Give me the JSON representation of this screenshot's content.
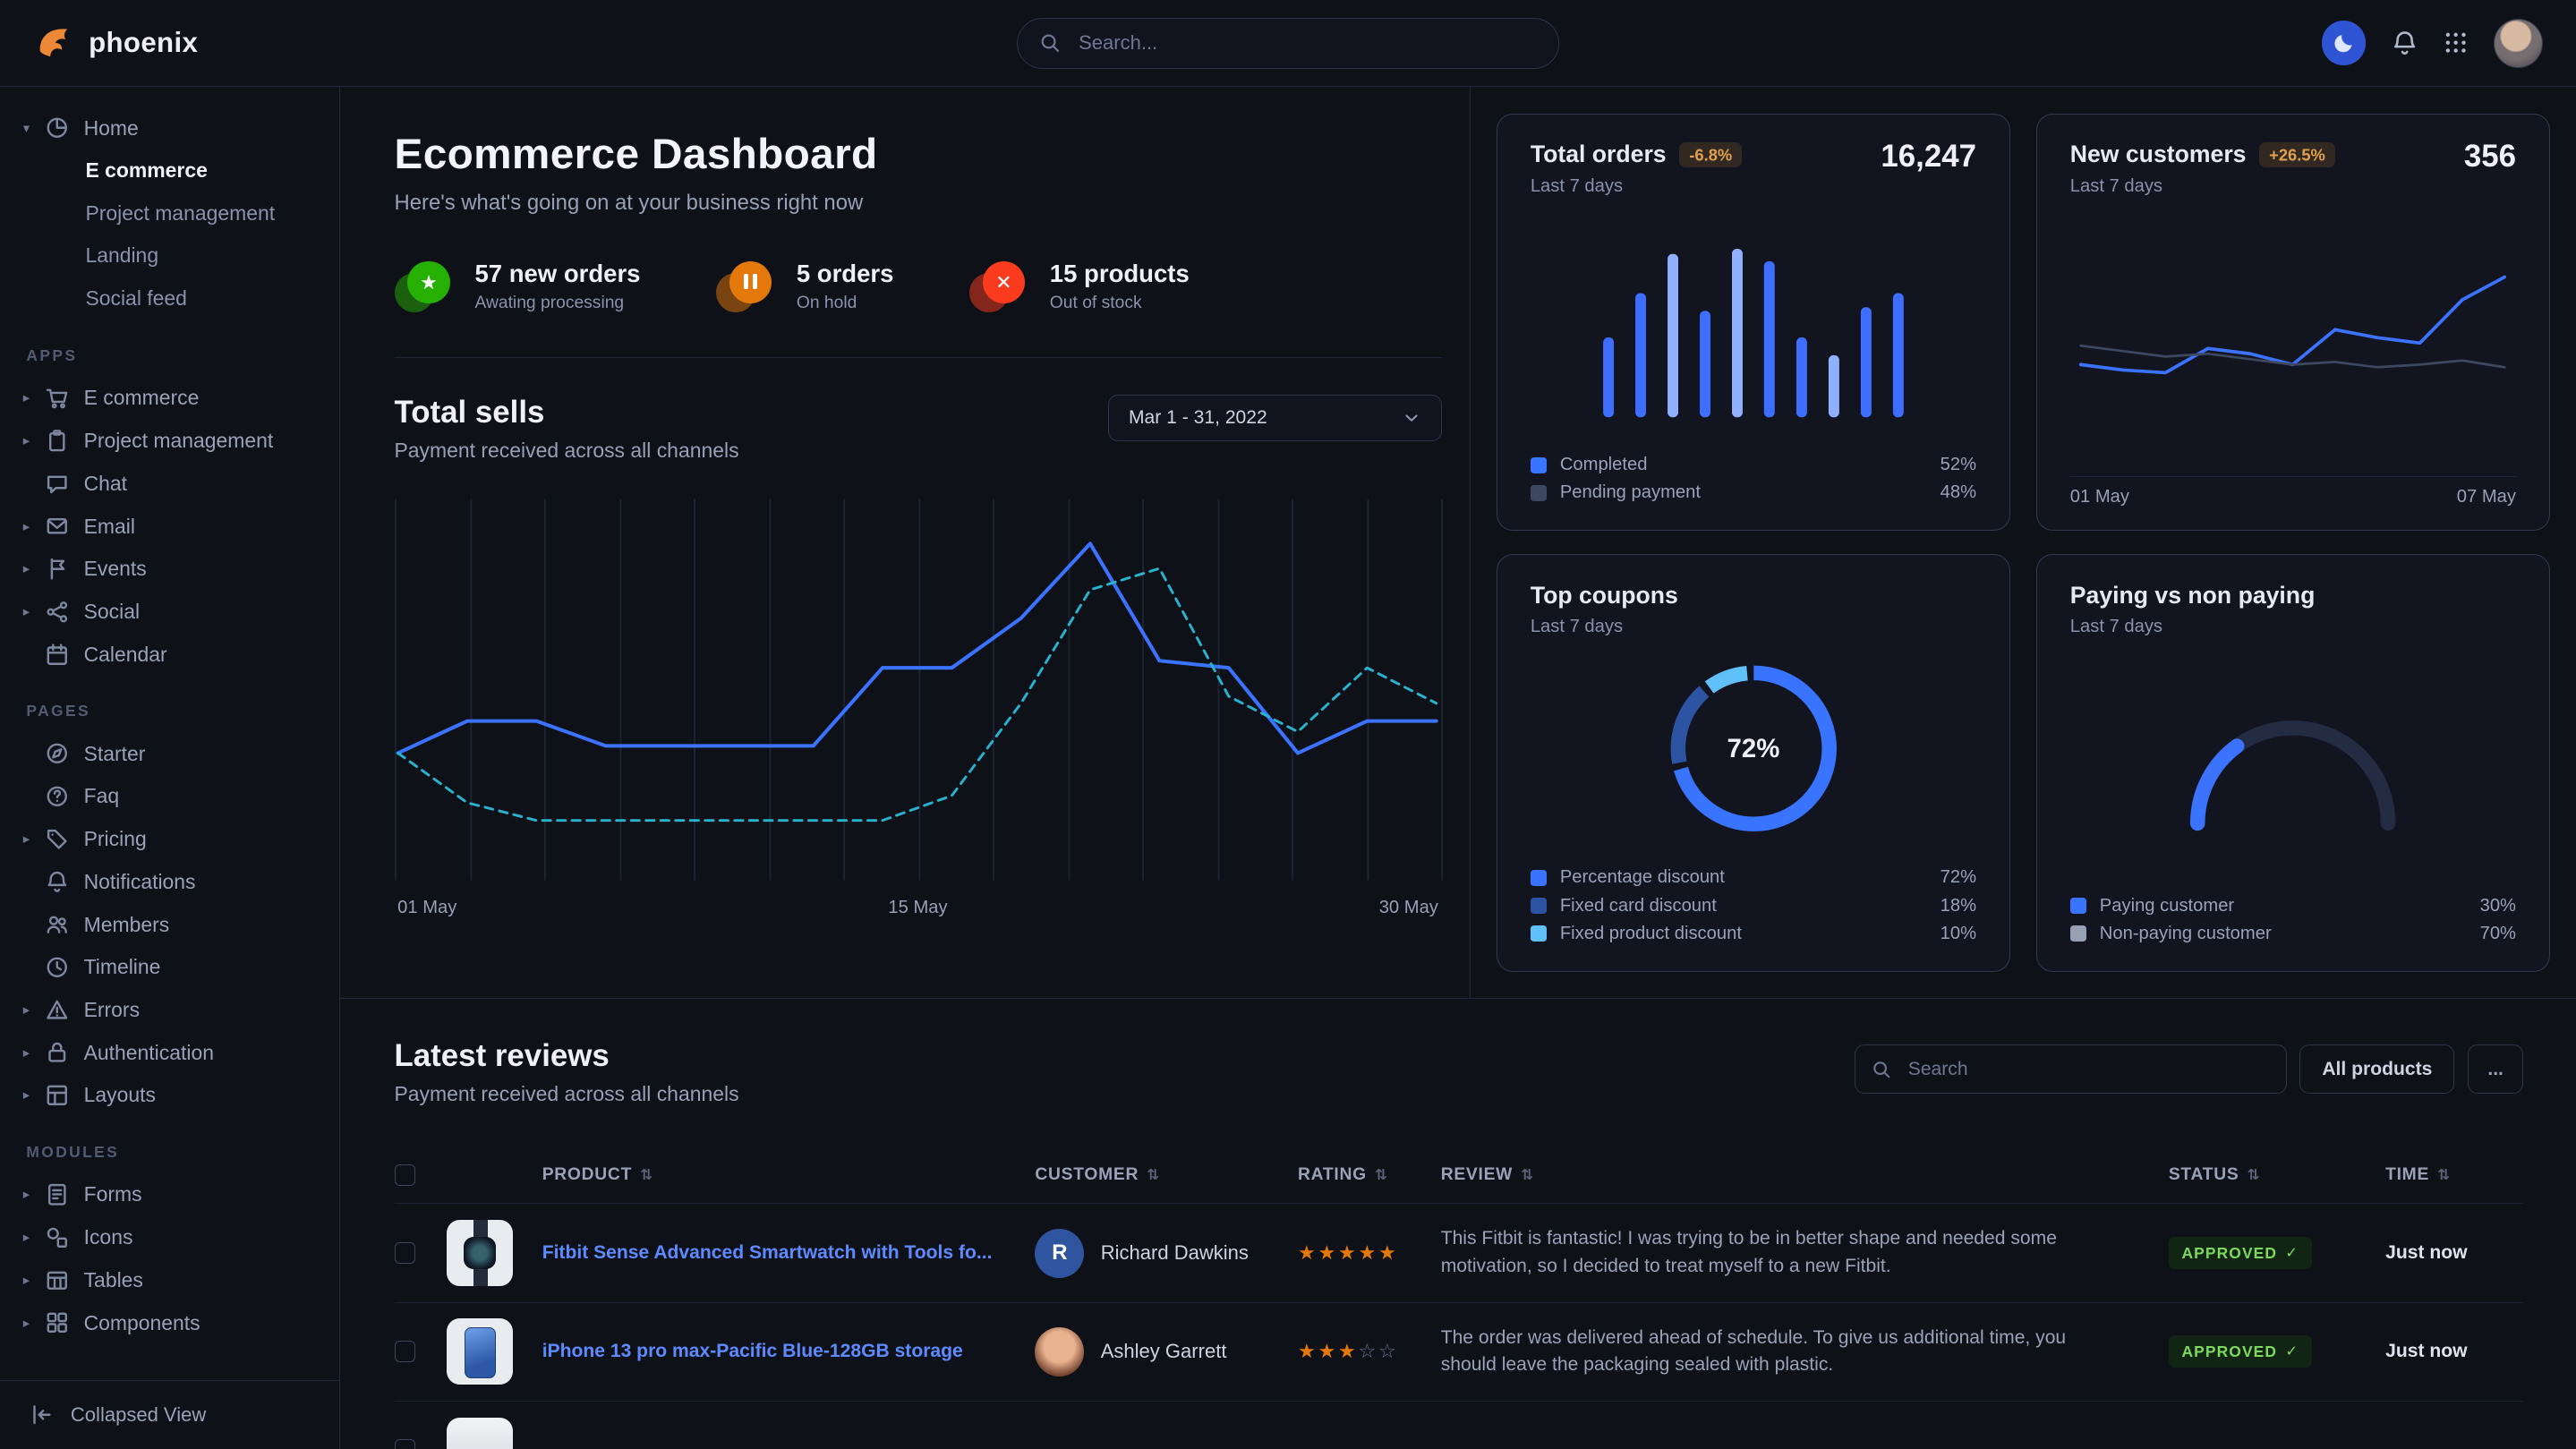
{
  "navbar": {
    "brand": "phoenix",
    "search_placeholder": "Search..."
  },
  "sidebar": {
    "items": [
      {
        "kind": "item",
        "label": "Home",
        "icon": "pie-chart-icon",
        "caret": "down"
      },
      {
        "kind": "sub",
        "label": "E commerce",
        "active": true
      },
      {
        "kind": "sub",
        "label": "Project management"
      },
      {
        "kind": "sub",
        "label": "Landing"
      },
      {
        "kind": "sub",
        "label": "Social feed"
      },
      {
        "kind": "section",
        "label": "APPS"
      },
      {
        "kind": "item",
        "label": "E commerce",
        "icon": "cart-icon",
        "caret": "right"
      },
      {
        "kind": "item",
        "label": "Project management",
        "icon": "clipboard-icon",
        "caret": "right"
      },
      {
        "kind": "item",
        "label": "Chat",
        "icon": "chat-icon"
      },
      {
        "kind": "item",
        "label": "Email",
        "icon": "mail-icon",
        "caret": "right"
      },
      {
        "kind": "item",
        "label": "Events",
        "icon": "bookmark-icon",
        "caret": "right"
      },
      {
        "kind": "item",
        "label": "Social",
        "icon": "share-icon",
        "caret": "right"
      },
      {
        "kind": "item",
        "label": "Calendar",
        "icon": "calendar-icon"
      },
      {
        "kind": "section",
        "label": "PAGES"
      },
      {
        "kind": "item",
        "label": "Starter",
        "icon": "compass-icon"
      },
      {
        "kind": "item",
        "label": "Faq",
        "icon": "question-circle-icon"
      },
      {
        "kind": "item",
        "label": "Pricing",
        "icon": "tag-icon",
        "caret": "right"
      },
      {
        "kind": "item",
        "label": "Notifications",
        "icon": "bell-icon"
      },
      {
        "kind": "item",
        "label": "Members",
        "icon": "users-icon"
      },
      {
        "kind": "item",
        "label": "Timeline",
        "icon": "clock-icon"
      },
      {
        "kind": "item",
        "label": "Errors",
        "icon": "warning-icon",
        "caret": "right"
      },
      {
        "kind": "item",
        "label": "Authentication",
        "icon": "lock-icon",
        "caret": "right"
      },
      {
        "kind": "item",
        "label": "Layouts",
        "icon": "layout-icon",
        "caret": "right"
      },
      {
        "kind": "section",
        "label": "MODULES"
      },
      {
        "kind": "item",
        "label": "Forms",
        "icon": "form-icon",
        "caret": "right"
      },
      {
        "kind": "item",
        "label": "Icons",
        "icon": "shapes-icon",
        "caret": "right"
      },
      {
        "kind": "item",
        "label": "Tables",
        "icon": "table-icon",
        "caret": "right"
      },
      {
        "kind": "item",
        "label": "Components",
        "icon": "components-icon",
        "caret": "right"
      }
    ],
    "collapsed_label": "Collapsed View"
  },
  "hero": {
    "title": "Ecommerce Dashboard",
    "subtitle": "Here's what's going on at your business right now",
    "stats": [
      {
        "value": "57 new orders",
        "caption": "Awating processing",
        "icon": "star-icon",
        "color": "#25b003"
      },
      {
        "value": "5 orders",
        "caption": "On hold",
        "icon": "pause-icon",
        "color": "#e5780b"
      },
      {
        "value": "15 products",
        "caption": "Out of stock",
        "icon": "x-icon",
        "color": "#fa3b1d"
      }
    ]
  },
  "total_sells": {
    "title": "Total sells",
    "subtitle": "Payment received across all channels",
    "date_range": "Mar 1 - 31, 2022",
    "chart_data": {
      "type": "line",
      "x_labels": [
        "01 May",
        "15 May",
        "30 May"
      ],
      "ylim": [
        0,
        100
      ],
      "grid": "vertical",
      "series": [
        {
          "name": "series-1",
          "style": "solid",
          "color": "#3b73ff",
          "values": [
            34,
            43,
            43,
            36,
            36,
            36,
            36,
            58,
            58,
            72,
            93,
            60,
            58,
            34,
            43,
            43
          ]
        },
        {
          "name": "series-2",
          "style": "dashed",
          "color": "#2ab3cf",
          "values": [
            34,
            20,
            15,
            15,
            15,
            15,
            15,
            15,
            22,
            48,
            80,
            86,
            50,
            40,
            58,
            48
          ]
        }
      ]
    }
  },
  "cards": {
    "total_orders": {
      "title": "Total orders",
      "badge": "-6.8%",
      "caption": "Last 7 days",
      "value": "16,247",
      "chart_data": {
        "type": "bar",
        "values": [
          45,
          70,
          92,
          60,
          95,
          88,
          45,
          35,
          62,
          70
        ],
        "colors": [
          "#3d6eff",
          "#3d6eff",
          "#8fb0ff",
          "#3d6eff",
          "#8fb0ff",
          "#3d6eff",
          "#3d6eff",
          "#8fb0ff",
          "#3d6eff",
          "#3d6eff"
        ]
      },
      "legend": [
        {
          "label": "Completed",
          "value": "52%",
          "color": "#3874ff"
        },
        {
          "label": "Pending payment",
          "value": "48%",
          "color": "#3e4760"
        }
      ]
    },
    "new_customers": {
      "title": "New customers",
      "badge": "+26.5%",
      "caption": "Last 7 days",
      "value": "356",
      "chart_data": {
        "type": "line",
        "x_labels": [
          "01 May",
          "07 May"
        ],
        "series": [
          {
            "name": "series-1",
            "color": "#3b73ff",
            "width": 2,
            "values": [
              30,
              26,
              24,
              42,
              38,
              30,
              56,
              50,
              46,
              78,
              95
            ]
          },
          {
            "name": "series-2",
            "color": "#3e4760",
            "width": 1.5,
            "values": [
              44,
              40,
              36,
              38,
              34,
              30,
              32,
              28,
              30,
              33,
              28
            ]
          }
        ]
      }
    },
    "top_coupons": {
      "title": "Top coupons",
      "caption": "Last 7 days",
      "center_label": "72%",
      "chart_data": {
        "type": "donut",
        "slices": [
          {
            "label": "Percentage discount",
            "value": 72,
            "display": "72%",
            "color": "#3874ff"
          },
          {
            "label": "Fixed card discount",
            "value": 18,
            "display": "18%",
            "color": "#2d54a3"
          },
          {
            "label": "Fixed product discount",
            "value": 10,
            "display": "10%",
            "color": "#5fc1f8"
          }
        ]
      }
    },
    "paying": {
      "title": "Paying vs non paying",
      "caption": "Last 7 days",
      "chart_data": {
        "type": "gauge",
        "value": 30,
        "max": 100,
        "color": "#3b73ff",
        "track": "#242c44"
      },
      "legend": [
        {
          "label": "Paying customer",
          "value": "30%",
          "color": "#3874ff"
        },
        {
          "label": "Non-paying customer",
          "value": "70%",
          "color": "#98a0b5"
        }
      ]
    }
  },
  "reviews": {
    "title": "Latest reviews",
    "subtitle": "Payment received across all channels",
    "search_placeholder": "Search",
    "all_products_label": "All products",
    "more_label": "...",
    "columns": [
      "PRODUCT",
      "CUSTOMER",
      "RATING",
      "REVIEW",
      "STATUS",
      "TIME"
    ],
    "rows": [
      {
        "product": "Fitbit Sense Advanced Smartwatch with Tools fo...",
        "customer": "Richard Dawkins",
        "avatar_type": "initial",
        "avatar_text": "R",
        "avatar_color": "#2f54a0",
        "rating": 5,
        "review": "This Fitbit is fantastic! I was trying to be in better shape and needed some motivation, so I decided to treat myself to a new Fitbit.",
        "status": "APPROVED",
        "time": "Just now",
        "thumb": "smartwatch"
      },
      {
        "product": "iPhone 13 pro max-Pacific Blue-128GB storage",
        "customer": "Ashley Garrett",
        "avatar_type": "photo",
        "rating": 3,
        "review": "The order was delivered ahead of schedule. To give us additional time, you should leave the packaging sealed with plastic.",
        "status": "APPROVED",
        "time": "Just now",
        "thumb": "iphone"
      }
    ]
  }
}
